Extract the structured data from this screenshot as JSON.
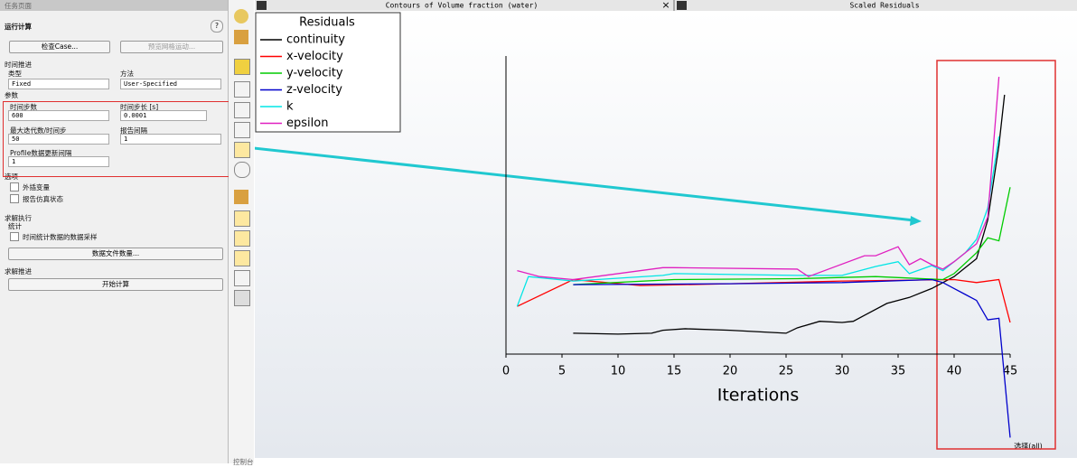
{
  "panel": {
    "header": "任务页面",
    "title": "运行计算",
    "check_case": "检查Case...",
    "preview_mesh": "预览网格运动...",
    "time_advance": {
      "label": "时间推进",
      "type_label": "类型",
      "type_value": "Fixed",
      "method_label": "方法",
      "method_value": "User-Specified"
    },
    "params": {
      "label": "参数",
      "steps_label": "时间步数",
      "steps_value": "600",
      "step_size_label": "时间步长 [s]",
      "step_size_value": "0.0001",
      "max_iter_label": "最大迭代数/时间步",
      "max_iter_value": "50",
      "report_label": "报告间隔",
      "report_value": "1",
      "profile_label": "Profile数据更新间隔",
      "profile_value": "1"
    },
    "options": {
      "label": "选项",
      "extrapolate": "外插变量",
      "report_status": "报告仿真状态"
    },
    "execution": {
      "label": "求解执行",
      "stats": "统计",
      "sampling": "时间统计数据的数据采样",
      "data_files": "数据文件数量..."
    },
    "advance": {
      "label": "求解推进",
      "start": "开始计算"
    },
    "console": "控制台"
  },
  "tabs": {
    "contours": "Contours of Volume fraction (water)",
    "close": "×",
    "residuals": "Scaled Residuals"
  },
  "status": "选择(all)",
  "chart_data": {
    "type": "line",
    "legend_title": "Residuals",
    "xlabel": "Iterations",
    "xlim": [
      0,
      45
    ],
    "xticks": [
      0,
      5,
      10,
      15,
      20,
      25,
      30,
      35,
      40,
      45
    ],
    "ylim": [
      -30,
      100
    ],
    "series": [
      {
        "name": "continuity",
        "color": "#000000",
        "x": [
          6,
          10,
          13,
          14,
          16,
          20,
          25,
          26,
          28,
          30,
          31,
          32,
          34,
          36,
          38,
          40,
          41,
          42,
          43,
          44,
          44.5
        ],
        "values": [
          7,
          6.7,
          7,
          8,
          8.5,
          8,
          7,
          8.8,
          11,
          10.6,
          11,
          13,
          17,
          19,
          22,
          26,
          29,
          32,
          45,
          70,
          87
        ]
      },
      {
        "name": "x-velocity",
        "color": "#ff0000",
        "x": [
          1,
          6,
          12,
          20,
          30,
          40,
          42,
          44,
          45
        ],
        "values": [
          16,
          25,
          23,
          23.6,
          24.5,
          25,
          24,
          25,
          10.6
        ]
      },
      {
        "name": "y-velocity",
        "color": "#00cc00",
        "x": [
          6,
          15,
          26,
          33,
          39,
          40,
          42,
          43,
          44,
          45
        ],
        "values": [
          23.3,
          25,
          25.3,
          26,
          25,
          27,
          34,
          39,
          38,
          56
        ]
      },
      {
        "name": "z-velocity",
        "color": "#0000cc",
        "x": [
          6,
          20,
          30,
          38,
          39,
          40,
          41,
          42,
          43,
          44,
          45
        ],
        "values": [
          23.3,
          23.6,
          24,
          25,
          24,
          22,
          20,
          18,
          11.5,
          12,
          -28
        ]
      },
      {
        "name": "k",
        "color": "#00e5e5",
        "x": [
          1,
          2,
          6,
          14,
          15,
          26,
          30,
          33,
          35,
          36,
          38,
          39,
          41,
          42,
          43,
          44
        ],
        "values": [
          16,
          26,
          24.5,
          26.4,
          27,
          26.4,
          26.4,
          29.4,
          31,
          27,
          29.7,
          28,
          34,
          38.5,
          49,
          73
        ]
      },
      {
        "name": "epsilon",
        "color": "#e020c0",
        "x": [
          1,
          3,
          6,
          14,
          15,
          26,
          27,
          32,
          33,
          35,
          36,
          37,
          38,
          39,
          40,
          42,
          43,
          44
        ],
        "values": [
          28,
          26,
          25,
          29,
          29,
          28.5,
          26,
          33,
          33,
          36,
          30,
          32,
          30,
          28.5,
          31,
          37,
          46,
          93
        ]
      }
    ]
  }
}
